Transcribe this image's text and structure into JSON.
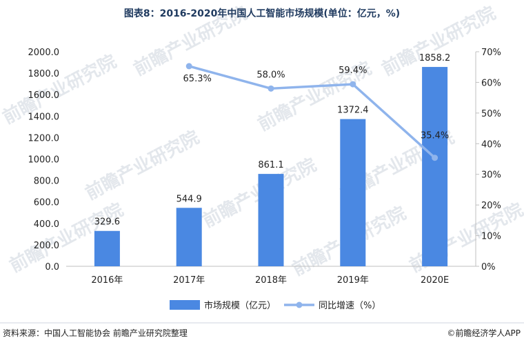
{
  "chart_data": {
    "type": "bar+line",
    "title": "图表8：2016-2020年中国人工智能市场规模(单位：亿元，%)",
    "categories": [
      "2016年",
      "2017年",
      "2018年",
      "2019年",
      "2020E"
    ],
    "series": [
      {
        "name": "市场规模（亿元）",
        "type": "bar",
        "axis": "left",
        "values": [
          329.6,
          544.9,
          861.1,
          1372.4,
          1858.2
        ],
        "labels": [
          "329.6",
          "544.9",
          "861.1",
          "1372.4",
          "1858.2"
        ],
        "color": "#4a88e2"
      },
      {
        "name": "同比增速（%）",
        "type": "line",
        "axis": "right",
        "values": [
          null,
          65.3,
          58.0,
          59.4,
          35.4
        ],
        "labels": [
          "",
          "65.3%",
          "58.0%",
          "59.4%",
          "35.4%"
        ],
        "color": "#8fb4ec"
      }
    ],
    "y_left": {
      "min": 0,
      "max": 2000,
      "step": 200,
      "ticks": [
        "0.0",
        "200.0",
        "400.0",
        "600.0",
        "800.0",
        "1000.0",
        "1200.0",
        "1400.0",
        "1600.0",
        "1800.0",
        "2000.0"
      ]
    },
    "y_right": {
      "min": 0,
      "max": 70,
      "step": 10,
      "ticks": [
        "0%",
        "10%",
        "20%",
        "30%",
        "40%",
        "50%",
        "60%",
        "70%"
      ]
    },
    "grid": false,
    "legend": "bottom"
  },
  "footer": {
    "source": "资料来源：中国人工智能协会 前瞻产业研究院整理",
    "brand": "©前瞻经济学人APP"
  }
}
